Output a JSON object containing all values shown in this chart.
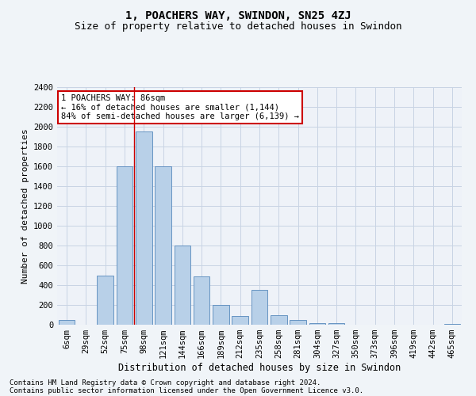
{
  "title": "1, POACHERS WAY, SWINDON, SN25 4ZJ",
  "subtitle": "Size of property relative to detached houses in Swindon",
  "xlabel": "Distribution of detached houses by size in Swindon",
  "ylabel": "Number of detached properties",
  "categories": [
    "6sqm",
    "29sqm",
    "52sqm",
    "75sqm",
    "98sqm",
    "121sqm",
    "144sqm",
    "166sqm",
    "189sqm",
    "212sqm",
    "235sqm",
    "258sqm",
    "281sqm",
    "304sqm",
    "327sqm",
    "350sqm",
    "373sqm",
    "396sqm",
    "419sqm",
    "442sqm",
    "465sqm"
  ],
  "values": [
    50,
    0,
    500,
    1600,
    1950,
    1600,
    800,
    490,
    200,
    90,
    350,
    100,
    50,
    20,
    15,
    0,
    0,
    0,
    0,
    0,
    5
  ],
  "bar_color": "#b8d0e8",
  "bar_edge_color": "#5588bb",
  "grid_color": "#c8d4e4",
  "background_color": "#f0f4f8",
  "plot_bg_color": "#eef2f8",
  "vline_x": 3.5,
  "vline_color": "#cc0000",
  "annotation_text": "1 POACHERS WAY: 86sqm\n← 16% of detached houses are smaller (1,144)\n84% of semi-detached houses are larger (6,139) →",
  "annotation_box_color": "white",
  "annotation_border_color": "#cc0000",
  "ylim": [
    0,
    2400
  ],
  "yticks": [
    0,
    200,
    400,
    600,
    800,
    1000,
    1200,
    1400,
    1600,
    1800,
    2000,
    2200,
    2400
  ],
  "footnote1": "Contains HM Land Registry data © Crown copyright and database right 2024.",
  "footnote2": "Contains public sector information licensed under the Open Government Licence v3.0.",
  "title_fontsize": 10,
  "subtitle_fontsize": 9,
  "xlabel_fontsize": 8.5,
  "ylabel_fontsize": 8,
  "tick_fontsize": 7.5,
  "annot_fontsize": 7.5,
  "footnote_fontsize": 6.5
}
